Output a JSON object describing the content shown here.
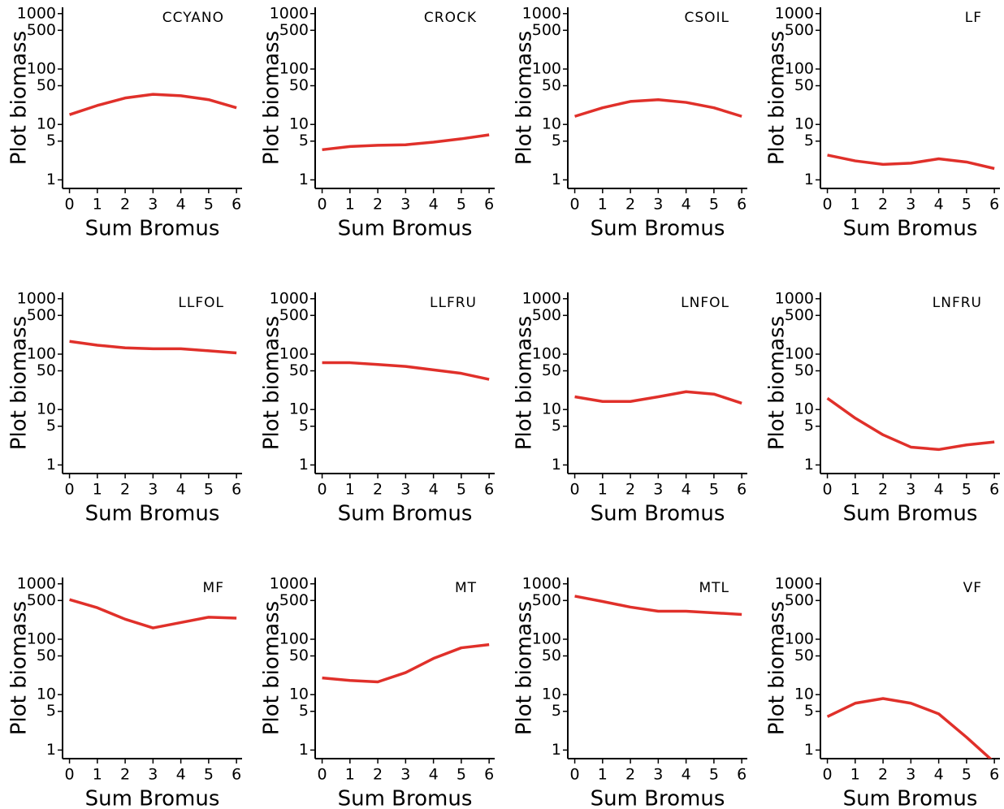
{
  "chart_data": [
    {
      "type": "line",
      "title": "CCYANO",
      "x_label": "Sum Bromus",
      "y_label": "Plot biomass",
      "x": [
        0,
        1,
        2,
        3,
        4,
        5,
        6
      ],
      "xlim": [
        -0.25,
        6.2
      ],
      "xticks": [
        0,
        1,
        2,
        3,
        4,
        5,
        6
      ],
      "ylim": [
        0.7,
        1300
      ],
      "yticks": [
        1,
        5,
        10,
        50,
        100,
        500,
        1000
      ],
      "log_y": true,
      "series": [
        {
          "color": "#e0302a",
          "values": [
            15,
            22,
            30,
            35,
            33,
            28,
            20
          ]
        }
      ]
    },
    {
      "type": "line",
      "title": "CROCK",
      "x_label": "Sum Bromus",
      "y_label": "Plot biomass",
      "x": [
        0,
        1,
        2,
        3,
        4,
        5,
        6
      ],
      "xlim": [
        -0.25,
        6.2
      ],
      "xticks": [
        0,
        1,
        2,
        3,
        4,
        5,
        6
      ],
      "ylim": [
        0.7,
        1300
      ],
      "yticks": [
        1,
        5,
        10,
        50,
        100,
        500,
        1000
      ],
      "log_y": true,
      "series": [
        {
          "color": "#e0302a",
          "values": [
            3.5,
            4,
            4.2,
            4.3,
            4.8,
            5.5,
            6.5
          ]
        }
      ]
    },
    {
      "type": "line",
      "title": "CSOIL",
      "x_label": "Sum Bromus",
      "y_label": "Plot biomass",
      "x": [
        0,
        1,
        2,
        3,
        4,
        5,
        6
      ],
      "xlim": [
        -0.25,
        6.2
      ],
      "xticks": [
        0,
        1,
        2,
        3,
        4,
        5,
        6
      ],
      "ylim": [
        0.7,
        1300
      ],
      "yticks": [
        1,
        5,
        10,
        50,
        100,
        500,
        1000
      ],
      "log_y": true,
      "series": [
        {
          "color": "#e0302a",
          "values": [
            14,
            20,
            26,
            28,
            25,
            20,
            14
          ]
        }
      ]
    },
    {
      "type": "line",
      "title": "LF",
      "x_label": "Sum Bromus",
      "y_label": "Plot biomass",
      "x": [
        0,
        1,
        2,
        3,
        4,
        5,
        6
      ],
      "xlim": [
        -0.25,
        6.2
      ],
      "xticks": [
        0,
        1,
        2,
        3,
        4,
        5,
        6
      ],
      "ylim": [
        0.7,
        1300
      ],
      "yticks": [
        1,
        5,
        10,
        50,
        100,
        500,
        1000
      ],
      "log_y": true,
      "series": [
        {
          "color": "#e0302a",
          "values": [
            2.8,
            2.2,
            1.9,
            2,
            2.4,
            2.1,
            1.6
          ]
        }
      ]
    },
    {
      "type": "line",
      "title": "LLFOL",
      "x_label": "Sum Bromus",
      "y_label": "Plot biomass",
      "x": [
        0,
        1,
        2,
        3,
        4,
        5,
        6
      ],
      "xlim": [
        -0.25,
        6.2
      ],
      "xticks": [
        0,
        1,
        2,
        3,
        4,
        5,
        6
      ],
      "ylim": [
        0.7,
        1300
      ],
      "yticks": [
        1,
        5,
        10,
        50,
        100,
        500,
        1000
      ],
      "log_y": true,
      "series": [
        {
          "color": "#e0302a",
          "values": [
            170,
            145,
            130,
            125,
            125,
            115,
            105
          ]
        }
      ]
    },
    {
      "type": "line",
      "title": "LLFRU",
      "x_label": "Sum Bromus",
      "y_label": "Plot biomass",
      "x": [
        0,
        1,
        2,
        3,
        4,
        5,
        6
      ],
      "xlim": [
        -0.25,
        6.2
      ],
      "xticks": [
        0,
        1,
        2,
        3,
        4,
        5,
        6
      ],
      "ylim": [
        0.7,
        1300
      ],
      "yticks": [
        1,
        5,
        10,
        50,
        100,
        500,
        1000
      ],
      "log_y": true,
      "series": [
        {
          "color": "#e0302a",
          "values": [
            70,
            70,
            65,
            60,
            52,
            45,
            35
          ]
        }
      ]
    },
    {
      "type": "line",
      "title": "LNFOL",
      "x_label": "Sum Bromus",
      "y_label": "Plot biomass",
      "x": [
        0,
        1,
        2,
        3,
        4,
        5,
        6
      ],
      "xlim": [
        -0.25,
        6.2
      ],
      "xticks": [
        0,
        1,
        2,
        3,
        4,
        5,
        6
      ],
      "ylim": [
        0.7,
        1300
      ],
      "yticks": [
        1,
        5,
        10,
        50,
        100,
        500,
        1000
      ],
      "log_y": true,
      "series": [
        {
          "color": "#e0302a",
          "values": [
            17,
            14,
            14,
            17,
            21,
            19,
            13
          ]
        }
      ]
    },
    {
      "type": "line",
      "title": "LNFRU",
      "x_label": "Sum Bromus",
      "y_label": "Plot biomass",
      "x": [
        0,
        1,
        2,
        3,
        4,
        5,
        6
      ],
      "xlim": [
        -0.25,
        6.2
      ],
      "xticks": [
        0,
        1,
        2,
        3,
        4,
        5,
        6
      ],
      "ylim": [
        0.7,
        1300
      ],
      "yticks": [
        1,
        5,
        10,
        50,
        100,
        500,
        1000
      ],
      "log_y": true,
      "series": [
        {
          "color": "#e0302a",
          "values": [
            16,
            7,
            3.5,
            2.1,
            1.9,
            2.3,
            2.6
          ]
        }
      ]
    },
    {
      "type": "line",
      "title": "MF",
      "x_label": "Sum Bromus",
      "y_label": "Plot biomass",
      "x": [
        0,
        1,
        2,
        3,
        4,
        5,
        6
      ],
      "xlim": [
        -0.25,
        6.2
      ],
      "xticks": [
        0,
        1,
        2,
        3,
        4,
        5,
        6
      ],
      "ylim": [
        0.7,
        1300
      ],
      "yticks": [
        1,
        5,
        10,
        50,
        100,
        500,
        1000
      ],
      "log_y": true,
      "series": [
        {
          "color": "#e0302a",
          "values": [
            520,
            370,
            230,
            160,
            200,
            250,
            240
          ]
        }
      ]
    },
    {
      "type": "line",
      "title": "MT",
      "x_label": "Sum Bromus",
      "y_label": "Plot biomass",
      "x": [
        0,
        1,
        2,
        3,
        4,
        5,
        6
      ],
      "xlim": [
        -0.25,
        6.2
      ],
      "xticks": [
        0,
        1,
        2,
        3,
        4,
        5,
        6
      ],
      "ylim": [
        0.7,
        1300
      ],
      "yticks": [
        1,
        5,
        10,
        50,
        100,
        500,
        1000
      ],
      "log_y": true,
      "series": [
        {
          "color": "#e0302a",
          "values": [
            20,
            18,
            17,
            25,
            45,
            70,
            80
          ]
        }
      ]
    },
    {
      "type": "line",
      "title": "MTL",
      "x_label": "Sum Bromus",
      "y_label": "Plot biomass",
      "x": [
        0,
        1,
        2,
        3,
        4,
        5,
        6
      ],
      "xlim": [
        -0.25,
        6.2
      ],
      "xticks": [
        0,
        1,
        2,
        3,
        4,
        5,
        6
      ],
      "ylim": [
        0.7,
        1300
      ],
      "yticks": [
        1,
        5,
        10,
        50,
        100,
        500,
        1000
      ],
      "log_y": true,
      "series": [
        {
          "color": "#e0302a",
          "values": [
            600,
            480,
            380,
            320,
            320,
            300,
            280
          ]
        }
      ]
    },
    {
      "type": "line",
      "title": "VF",
      "x_label": "Sum Bromus",
      "y_label": "Plot biomass",
      "x": [
        0,
        1,
        2,
        3,
        4,
        5,
        6
      ],
      "xlim": [
        -0.25,
        6.2
      ],
      "xticks": [
        0,
        1,
        2,
        3,
        4,
        5,
        6
      ],
      "ylim": [
        0.7,
        1300
      ],
      "yticks": [
        1,
        5,
        10,
        50,
        100,
        500,
        1000
      ],
      "log_y": true,
      "series": [
        {
          "color": "#e0302a",
          "values": [
            4,
            7,
            8.5,
            7,
            4.5,
            1.7,
            0.6
          ]
        }
      ]
    }
  ]
}
